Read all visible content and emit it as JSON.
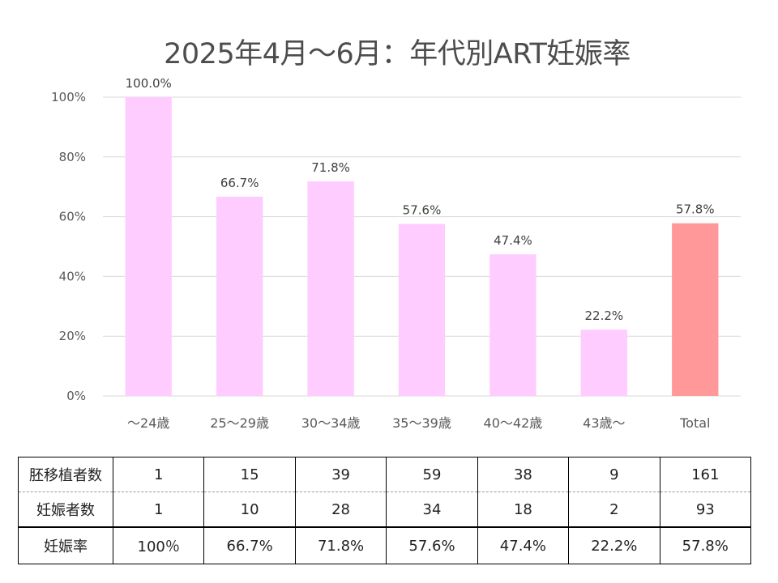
{
  "chart_data": {
    "type": "bar",
    "title": "2025年4月～6月：年代別ART妊娠率",
    "categories": [
      "～24歳",
      "25～29歳",
      "30～34歳",
      "35～39歳",
      "40～42歳",
      "43歳～",
      "Total"
    ],
    "values": [
      100.0,
      66.7,
      71.8,
      57.6,
      47.4,
      22.2,
      57.8
    ],
    "value_labels": [
      "100.0%",
      "66.7%",
      "71.8%",
      "57.6%",
      "47.4%",
      "22.2%",
      "57.8%"
    ],
    "bar_colors": [
      "#ffccff",
      "#ffccff",
      "#ffccff",
      "#ffccff",
      "#ffccff",
      "#ffccff",
      "#ff9999"
    ],
    "ylim": [
      0,
      100
    ],
    "yticks": [
      0,
      20,
      40,
      60,
      80,
      100
    ],
    "ytick_labels": [
      "0%",
      "20%",
      "40%",
      "60%",
      "80%",
      "100%"
    ],
    "grid": true,
    "xlabel": "",
    "ylabel": ""
  },
  "table": {
    "rows": [
      {
        "label": "胚移植者数",
        "cells": [
          "1",
          "15",
          "39",
          "59",
          "38",
          "9",
          "161"
        ]
      },
      {
        "label": "妊娠者数",
        "cells": [
          "1",
          "10",
          "28",
          "34",
          "18",
          "2",
          "93"
        ]
      },
      {
        "label": "妊娠率",
        "cells": [
          "100％",
          "66.7%",
          "71.8%",
          "57.6%",
          "47.4%",
          "22.2%",
          "57.8%"
        ]
      }
    ]
  }
}
